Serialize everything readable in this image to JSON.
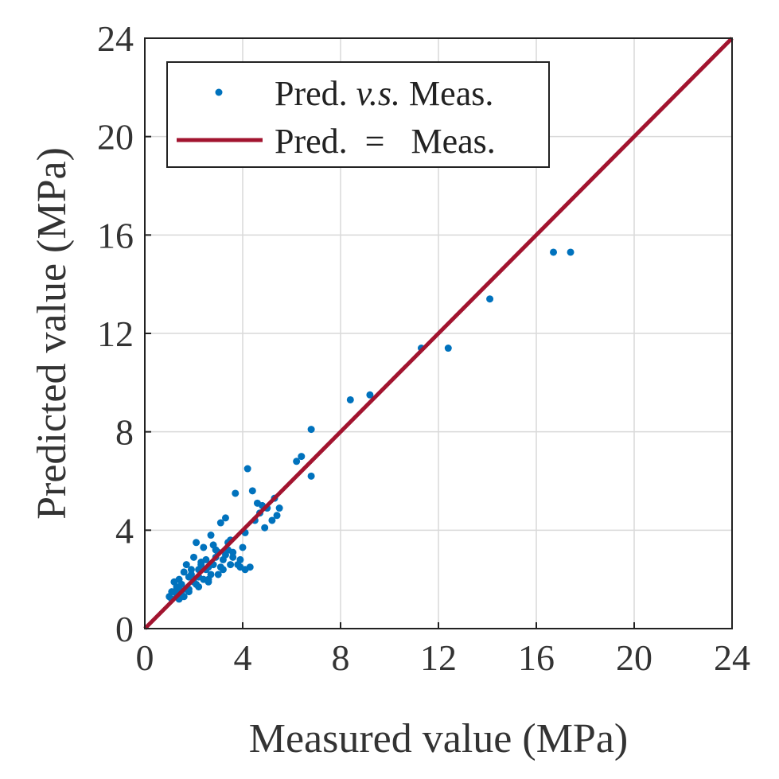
{
  "chart_data": {
    "type": "scatter",
    "title": "",
    "xlabel": "Measured value (MPa)",
    "ylabel": "Predicted  value (MPa)",
    "xlim": [
      0,
      24
    ],
    "ylim": [
      0,
      24
    ],
    "xticks": [
      "0",
      "4",
      "8",
      "12",
      "16",
      "20",
      "24"
    ],
    "yticks": [
      "0",
      "4",
      "8",
      "12",
      "16",
      "20",
      "24"
    ],
    "grid": true,
    "legend_position": "top-left",
    "colors": {
      "points": "#0072BD",
      "line": "#A2142F",
      "grid": "#d9d9d9",
      "axes": "#222222"
    },
    "legend": {
      "scatter_pre": "Pred. ",
      "scatter_italic": "v.s.",
      "scatter_post": " Meas.",
      "line_label": "Pred.  =   Meas."
    },
    "series": [
      {
        "name": "Pred. v.s. Meas.",
        "kind": "scatter",
        "x": [
          17.4,
          16.7,
          14.1,
          12.4,
          11.3,
          9.2,
          8.4,
          6.8,
          6.8,
          6.4,
          6.2,
          5.5,
          5.4,
          5.3,
          5.2,
          5.0,
          4.9,
          4.8,
          4.7,
          4.6,
          4.5,
          4.4,
          4.2,
          4.1,
          4.0,
          3.9,
          3.8,
          3.7,
          3.6,
          3.5,
          3.4,
          3.3,
          3.2,
          3.1,
          3.0,
          2.9,
          2.8,
          2.7,
          2.6,
          2.5,
          2.4,
          2.3,
          2.2,
          2.1,
          2.0,
          1.9,
          1.8,
          1.7,
          1.6,
          1.5,
          1.4,
          1.3,
          1.2,
          1.1,
          1.0,
          3.9,
          3.6,
          3.4,
          3.2,
          3.0,
          2.8,
          2.6,
          2.4,
          2.2,
          2.0,
          1.8,
          1.6,
          1.4,
          1.2,
          3.5,
          3.3,
          3.1,
          2.9,
          2.7,
          2.5,
          2.3,
          2.1,
          1.9,
          1.7,
          1.5,
          1.3,
          1.1,
          4.3,
          4.1,
          2.6,
          2.2,
          1.8,
          1.4
        ],
        "y": [
          15.3,
          15.3,
          13.4,
          11.4,
          11.4,
          9.5,
          9.3,
          8.1,
          6.2,
          7.0,
          6.8,
          4.9,
          4.6,
          5.3,
          4.4,
          4.9,
          4.1,
          5.0,
          4.7,
          5.1,
          4.4,
          5.6,
          6.5,
          3.9,
          3.3,
          2.8,
          2.6,
          5.5,
          3.1,
          2.6,
          3.5,
          4.5,
          2.4,
          4.3,
          3.1,
          2.9,
          2.6,
          3.8,
          2.5,
          2.4,
          3.3,
          2.6,
          2.4,
          3.5,
          1.9,
          2.4,
          2.1,
          1.6,
          2.3,
          1.8,
          1.6,
          1.7,
          1.5,
          1.2,
          1.3,
          2.5,
          2.9,
          3.2,
          2.8,
          2.2,
          3.4,
          2.0,
          2.0,
          2.1,
          2.9,
          1.6,
          1.3,
          2.0,
          1.9,
          3.6,
          3.0,
          2.5,
          3.2,
          2.2,
          2.8,
          2.7,
          1.8,
          2.2,
          2.6,
          1.4,
          1.4,
          1.5,
          2.5,
          2.4,
          1.9,
          1.7,
          1.5,
          1.2
        ]
      },
      {
        "name": "Pred. = Meas.",
        "kind": "line",
        "x": [
          0,
          24
        ],
        "y": [
          0,
          24
        ]
      }
    ]
  }
}
